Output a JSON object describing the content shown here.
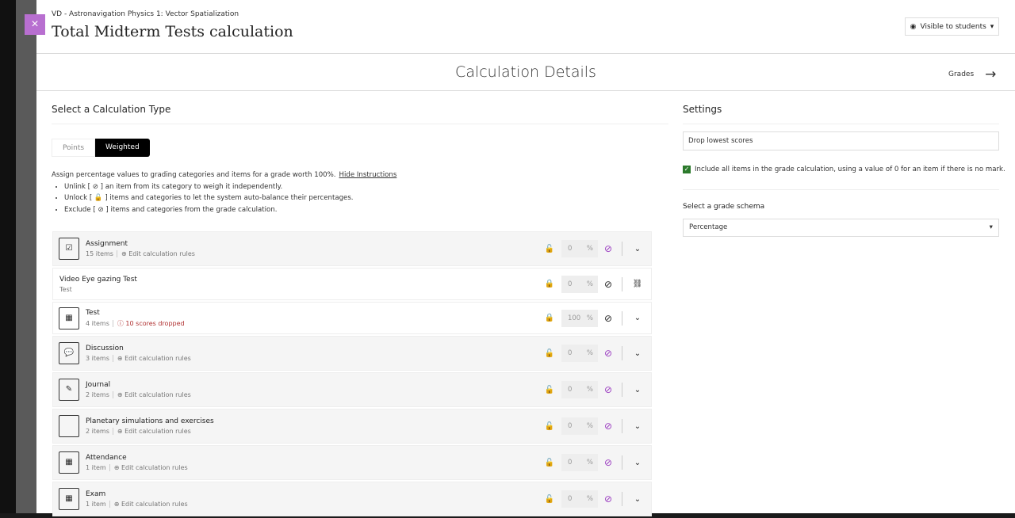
{
  "header": {
    "breadcrumb": "VD - Astronavigation Physics 1: Vector Spatialization",
    "title": "Total Midterm Tests calculation",
    "visibility": "Visible to students",
    "close": "×"
  },
  "subheader": {
    "title": "Calculation Details",
    "grades_link": "Grades"
  },
  "calc": {
    "title": "Select a Calculation Type",
    "options": [
      "Points",
      "Weighted"
    ],
    "selected": "Weighted",
    "instructions": "Assign percentage values to grading categories and items for a grade worth 100%.",
    "hide": "Hide Instructions",
    "bullets": [
      "Unlink [ ⊘ ] an item from its category to weigh it independently.",
      "Unlock [ 🔓 ] items and categories to let the system auto-balance their percentages.",
      "Exclude [ ⊘ ] items and categories from the grade calculation."
    ]
  },
  "rows": [
    {
      "name": "Assignment",
      "sub": "15 items",
      "action": "Edit calculation rules",
      "value": "0",
      "locked": false,
      "excluded": true,
      "type": "category",
      "icon": "assignment-icon"
    },
    {
      "name": "Video Eye gazing Test",
      "sub": "Test",
      "value": "0",
      "locked": true,
      "excluded": false,
      "type": "item",
      "icon": "link-icon"
    },
    {
      "name": "Test",
      "sub": "4 items",
      "dropped": "10 scores dropped",
      "value": "100",
      "locked": true,
      "excluded": false,
      "type": "category2",
      "icon": "test-icon"
    },
    {
      "name": "Discussion",
      "sub": "3 items",
      "action": "Edit calculation rules",
      "value": "0",
      "locked": false,
      "excluded": true,
      "type": "category",
      "icon": "discussion-icon"
    },
    {
      "name": "Journal",
      "sub": "2 items",
      "action": "Edit calculation rules",
      "value": "0",
      "locked": false,
      "excluded": true,
      "type": "category",
      "icon": "journal-icon"
    },
    {
      "name": "Planetary simulations and exercises",
      "sub": "2 items",
      "action": "Edit calculation rules",
      "value": "0",
      "locked": false,
      "excluded": true,
      "type": "category",
      "icon": "document-icon"
    },
    {
      "name": "Attendance",
      "sub": "1 item",
      "action": "Edit calculation rules",
      "value": "0",
      "locked": false,
      "excluded": true,
      "type": "category",
      "icon": "attendance-icon"
    },
    {
      "name": "Exam",
      "sub": "1 item",
      "action": "Edit calculation rules",
      "value": "0",
      "locked": false,
      "excluded": true,
      "type": "category",
      "icon": "exam-icon"
    }
  ],
  "settings": {
    "title": "Settings",
    "drop_placeholder": "Drop lowest scores",
    "include_label": "Include all items in the grade calculation, using a value of 0 for an item if there is no mark.",
    "include_checked": true,
    "schema_label": "Select a grade schema",
    "schema_value": "Percentage"
  },
  "colors": {
    "accent": "#b86fd0",
    "exclude": "#9a3bc0",
    "check": "#2c7a2c",
    "dropped": "#b03030"
  }
}
